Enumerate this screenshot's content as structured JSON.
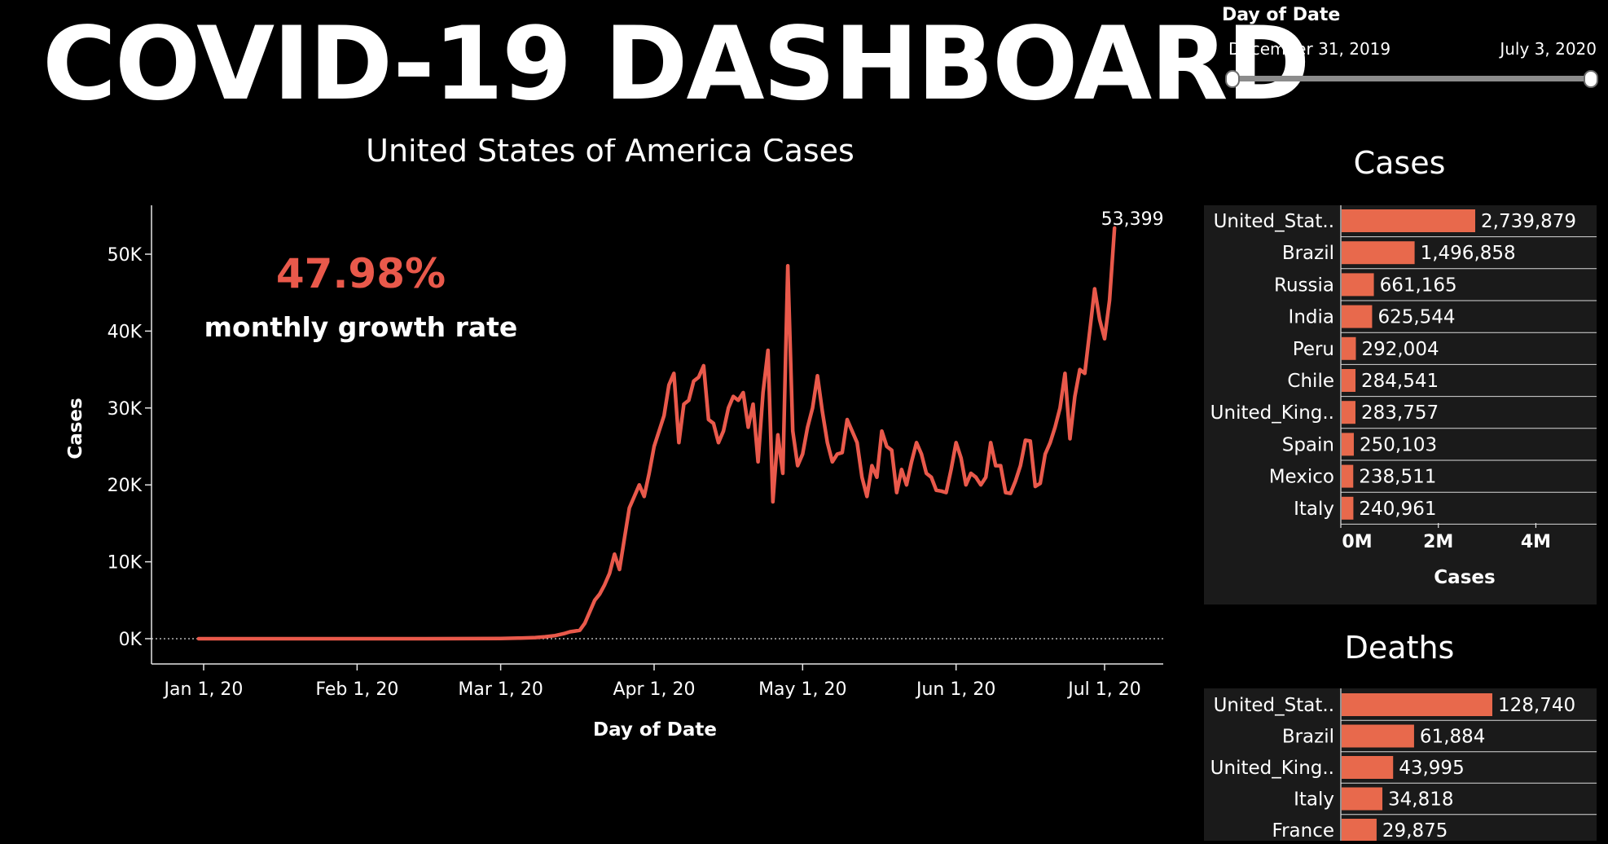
{
  "title": "COVID-19 DASHBOARD",
  "filter": {
    "label": "Day of Date",
    "start": "December 31, 2019",
    "end": "July 3, 2020"
  },
  "colors": {
    "accent": "#e9594b",
    "bar": "#e8694c",
    "background": "#000000",
    "panel": "#1a1a1a"
  },
  "kpi": {
    "value": "47.98%",
    "label": "monthly growth rate"
  },
  "chart_data": [
    {
      "type": "line",
      "title": "United States of America Cases",
      "xlabel": "Day of Date",
      "ylabel": "Cases",
      "ylim": [
        0,
        55000
      ],
      "yticks": [
        0,
        10000,
        20000,
        30000,
        40000,
        50000
      ],
      "ytick_labels": [
        "0K",
        "10K",
        "20K",
        "30K",
        "40K",
        "50K"
      ],
      "xtick_labels": [
        "Jan 1, 20",
        "Feb 1, 20",
        "Mar 1, 20",
        "Apr 1, 20",
        "May 1, 20",
        "Jun 1, 20",
        "Jul 1, 20"
      ],
      "xtick_dates": [
        "2020-01-01",
        "2020-02-01",
        "2020-03-01",
        "2020-04-01",
        "2020-05-01",
        "2020-06-01",
        "2020-07-01"
      ],
      "end_label": "53,399",
      "series": [
        {
          "x": [
            "2019-12-31",
            "2020-01-15",
            "2020-02-01",
            "2020-02-15",
            "2020-03-01",
            "2020-03-05",
            "2020-03-08",
            "2020-03-10",
            "2020-03-12",
            "2020-03-14",
            "2020-03-15",
            "2020-03-16",
            "2020-03-17",
            "2020-03-18",
            "2020-03-19",
            "2020-03-20",
            "2020-03-21",
            "2020-03-22",
            "2020-03-23",
            "2020-03-24",
            "2020-03-25",
            "2020-03-26",
            "2020-03-27",
            "2020-03-28",
            "2020-03-29",
            "2020-03-30",
            "2020-03-31",
            "2020-04-01",
            "2020-04-02",
            "2020-04-03",
            "2020-04-04",
            "2020-04-05",
            "2020-04-06",
            "2020-04-07",
            "2020-04-08",
            "2020-04-09",
            "2020-04-10",
            "2020-04-11",
            "2020-04-12",
            "2020-04-13",
            "2020-04-14",
            "2020-04-15",
            "2020-04-16",
            "2020-04-17",
            "2020-04-18",
            "2020-04-19",
            "2020-04-20",
            "2020-04-21",
            "2020-04-22",
            "2020-04-23",
            "2020-04-24",
            "2020-04-25",
            "2020-04-26",
            "2020-04-27",
            "2020-04-28",
            "2020-04-29",
            "2020-04-30",
            "2020-05-01",
            "2020-05-02",
            "2020-05-03",
            "2020-05-04",
            "2020-05-05",
            "2020-05-06",
            "2020-05-07",
            "2020-05-08",
            "2020-05-09",
            "2020-05-10",
            "2020-05-11",
            "2020-05-12",
            "2020-05-13",
            "2020-05-14",
            "2020-05-15",
            "2020-05-16",
            "2020-05-17",
            "2020-05-18",
            "2020-05-19",
            "2020-05-20",
            "2020-05-21",
            "2020-05-22",
            "2020-05-23",
            "2020-05-24",
            "2020-05-25",
            "2020-05-26",
            "2020-05-27",
            "2020-05-28",
            "2020-05-29",
            "2020-05-30",
            "2020-05-31",
            "2020-06-01",
            "2020-06-02",
            "2020-06-03",
            "2020-06-04",
            "2020-06-05",
            "2020-06-06",
            "2020-06-07",
            "2020-06-08",
            "2020-06-09",
            "2020-06-10",
            "2020-06-11",
            "2020-06-12",
            "2020-06-13",
            "2020-06-14",
            "2020-06-15",
            "2020-06-16",
            "2020-06-17",
            "2020-06-18",
            "2020-06-19",
            "2020-06-20",
            "2020-06-21",
            "2020-06-22",
            "2020-06-23",
            "2020-06-24",
            "2020-06-25",
            "2020-06-26",
            "2020-06-27",
            "2020-06-28",
            "2020-06-29",
            "2020-06-30",
            "2020-07-01",
            "2020-07-02",
            "2020-07-03"
          ],
          "y": [
            0,
            0,
            0,
            0,
            30,
            80,
            150,
            250,
            400,
            700,
            900,
            1000,
            1100,
            2000,
            3500,
            5000,
            5800,
            7000,
            8500,
            11000,
            9000,
            13000,
            17000,
            18500,
            20000,
            18500,
            21500,
            25000,
            27000,
            29000,
            33000,
            34500,
            25500,
            30500,
            31000,
            33500,
            34000,
            35500,
            28500,
            28000,
            25500,
            27000,
            30000,
            31500,
            31000,
            32000,
            27500,
            30500,
            23000,
            32000,
            37500,
            17800,
            26500,
            21500,
            48500,
            27000,
            22500,
            24000,
            27500,
            30000,
            34200,
            29500,
            25500,
            23000,
            24000,
            24200,
            28500,
            27000,
            25500,
            21000,
            18500,
            22500,
            21000,
            27000,
            25000,
            24500,
            19000,
            22000,
            20000,
            23000,
            25500,
            24000,
            21500,
            21000,
            19300,
            19200,
            19000,
            22000,
            25500,
            23500,
            20000,
            21500,
            21000,
            20000,
            21000,
            25500,
            22500,
            22500,
            19000,
            18900,
            20500,
            22500,
            25800,
            25700,
            19800,
            20200,
            24000,
            25500,
            27500,
            30000,
            34500,
            26000,
            31500,
            35000,
            34500,
            40000,
            45500,
            41500,
            39000,
            44000,
            53399
          ]
        }
      ]
    },
    {
      "type": "bar",
      "title": "Cases",
      "xlabel": "Cases",
      "xlim": [
        0,
        5000000
      ],
      "xtick_labels": [
        "0M",
        "2M",
        "4M"
      ],
      "categories": [
        "United_Stat..",
        "Brazil",
        "Russia",
        "India",
        "Peru",
        "Chile",
        "United_King..",
        "Spain",
        "Mexico",
        "Italy"
      ],
      "values": [
        2739879,
        1496858,
        661165,
        625544,
        292004,
        284541,
        283757,
        250103,
        238511,
        240961
      ],
      "value_labels": [
        "2,739,879",
        "1,496,858",
        "661,165",
        "625,544",
        "292,004",
        "284,541",
        "283,757",
        "250,103",
        "238,511",
        "240,961"
      ]
    },
    {
      "type": "bar",
      "title": "Deaths",
      "xlim": [
        0,
        165000
      ],
      "categories": [
        "United_Stat..",
        "Brazil",
        "United_King..",
        "Italy",
        "France"
      ],
      "values": [
        128740,
        61884,
        43995,
        34818,
        29875
      ],
      "value_labels": [
        "128,740",
        "61,884",
        "43,995",
        "34,818",
        "29,875"
      ]
    }
  ]
}
